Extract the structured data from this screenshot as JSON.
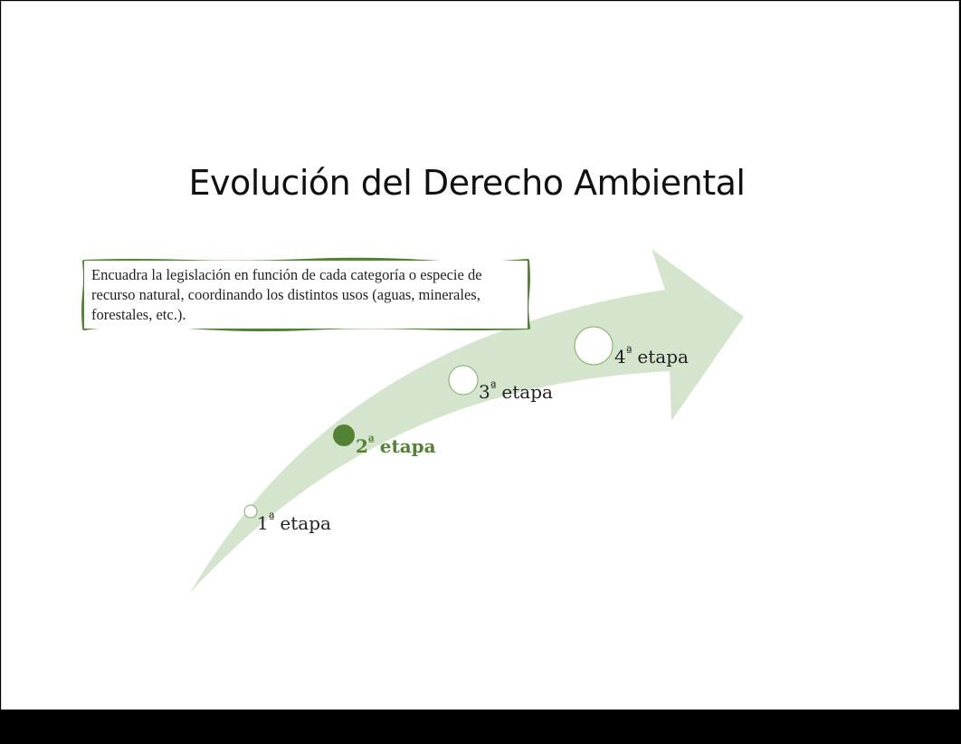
{
  "slide": {
    "title": "Evolución del Derecho Ambiental",
    "description": "Encuadra la legislación en función de cada categoría o especie de recurso natural, coordinando los distintos usos (aguas, minerales, forestales, etc.).",
    "active_stage_index": 1,
    "stages": [
      {
        "number": "1",
        "ordinal": "ª",
        "word": "etapa"
      },
      {
        "number": "2",
        "ordinal": "ª",
        "word": "etapa"
      },
      {
        "number": "3",
        "ordinal": "ª",
        "word": "etapa"
      },
      {
        "number": "4",
        "ordinal": "ª",
        "word": "etapa"
      }
    ],
    "colors": {
      "arrow_fill": "#d5e4cd",
      "accent": "#548235",
      "box_border": "#548235",
      "text": "#222222"
    }
  }
}
